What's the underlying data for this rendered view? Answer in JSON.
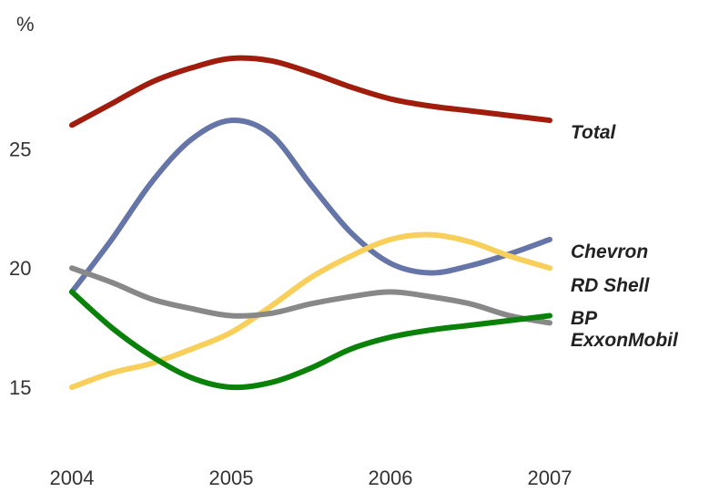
{
  "chart_data": {
    "type": "line",
    "ylabel": "%",
    "ylim": [
      15,
      28
    ],
    "y_ticks": [
      "15",
      "20",
      "25"
    ],
    "categories": [
      "2004",
      "2005",
      "2006",
      "2007"
    ],
    "grid": false,
    "legend": "direct-labels-right",
    "x": [
      2004.0,
      2004.25,
      2004.5,
      2004.75,
      2005.0,
      2005.25,
      2005.5,
      2005.75,
      2006.0,
      2006.25,
      2006.5,
      2006.75,
      2007.0
    ],
    "series": [
      {
        "name": "Total",
        "color": "#a01c0c",
        "values": [
          26.0,
          26.9,
          27.8,
          28.4,
          28.8,
          28.7,
          28.2,
          27.6,
          27.1,
          26.8,
          26.6,
          26.4,
          26.2
        ]
      },
      {
        "name": "Chevron",
        "color": "#6675a8",
        "values": [
          19.0,
          21.2,
          23.6,
          25.4,
          26.2,
          25.6,
          23.5,
          21.5,
          20.2,
          19.8,
          20.1,
          20.6,
          21.2
        ]
      },
      {
        "name": "RD Shell",
        "color": "#f7cf5a",
        "values": [
          15.0,
          15.6,
          16.0,
          16.6,
          17.3,
          18.4,
          19.6,
          20.5,
          21.2,
          21.4,
          21.1,
          20.5,
          20.0
        ]
      },
      {
        "name": "BP",
        "color": "#888888",
        "values": [
          20.0,
          19.4,
          18.7,
          18.3,
          18.0,
          18.1,
          18.5,
          18.8,
          19.0,
          18.8,
          18.5,
          18.0,
          17.7
        ]
      },
      {
        "name": "ExxonMobil",
        "color": "#0a820a",
        "values": [
          19.0,
          17.5,
          16.3,
          15.4,
          15.0,
          15.2,
          15.8,
          16.6,
          17.1,
          17.4,
          17.6,
          17.8,
          18.0
        ]
      }
    ]
  }
}
